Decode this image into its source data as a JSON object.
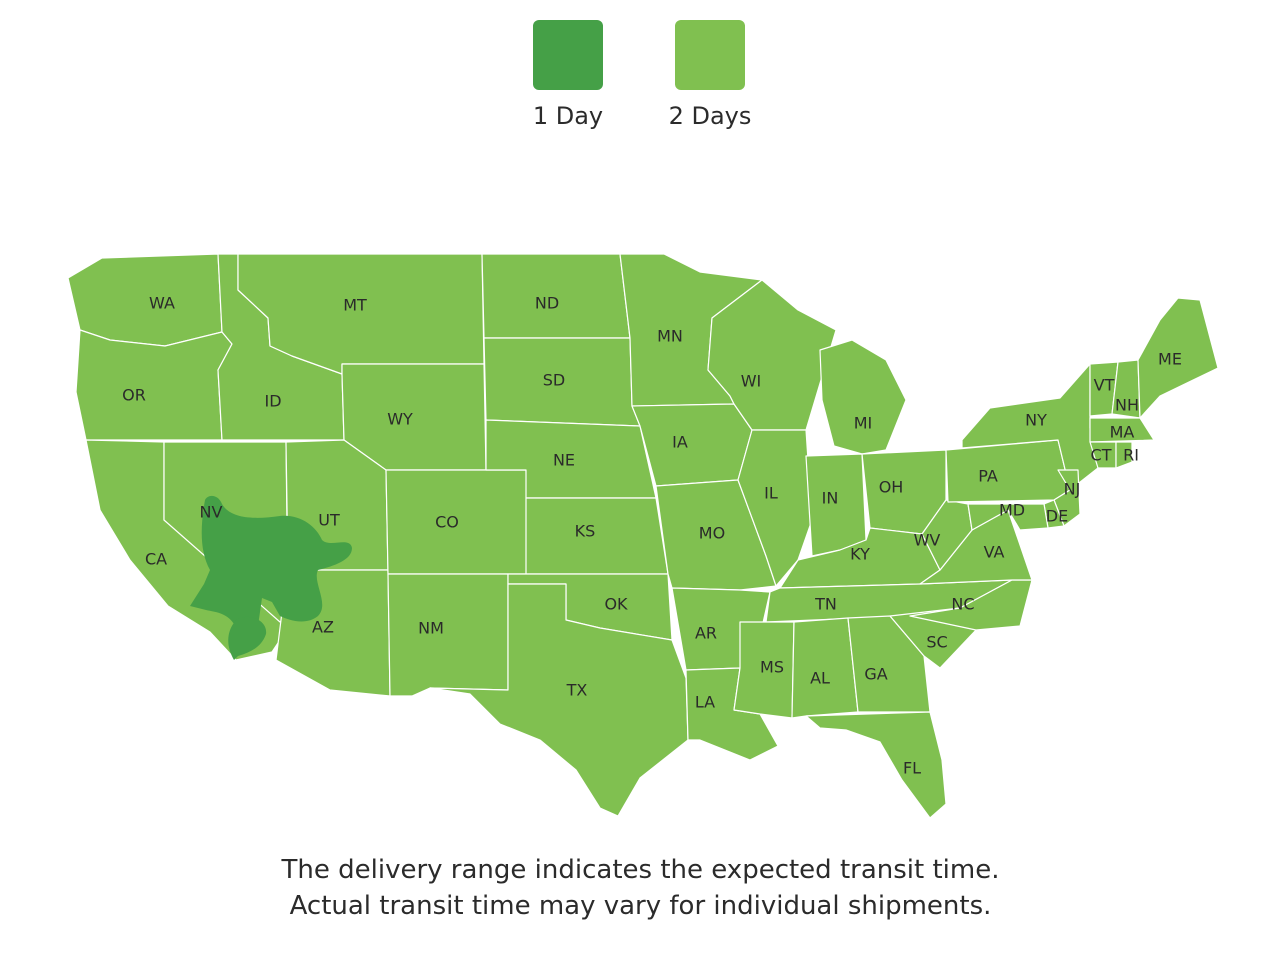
{
  "legend": [
    {
      "label": "1 Day",
      "color": "#45a047"
    },
    {
      "label": "2 Days",
      "color": "#80c050"
    }
  ],
  "map": {
    "base_color": "#80c050",
    "zone_color": "#45a047",
    "border_color": "#ffffff",
    "states": [
      {
        "code": "WA",
        "zone": "2 Days"
      },
      {
        "code": "OR",
        "zone": "2 Days"
      },
      {
        "code": "CA",
        "zone": "2 Days"
      },
      {
        "code": "ID",
        "zone": "2 Days"
      },
      {
        "code": "NV",
        "zone": "2 Days"
      },
      {
        "code": "MT",
        "zone": "2 Days"
      },
      {
        "code": "WY",
        "zone": "2 Days"
      },
      {
        "code": "UT",
        "zone": "2 Days"
      },
      {
        "code": "AZ",
        "zone": "2 Days"
      },
      {
        "code": "CO",
        "zone": "2 Days"
      },
      {
        "code": "NM",
        "zone": "2 Days"
      },
      {
        "code": "ND",
        "zone": "2 Days"
      },
      {
        "code": "SD",
        "zone": "2 Days"
      },
      {
        "code": "NE",
        "zone": "2 Days"
      },
      {
        "code": "KS",
        "zone": "2 Days"
      },
      {
        "code": "OK",
        "zone": "2 Days"
      },
      {
        "code": "TX",
        "zone": "2 Days"
      },
      {
        "code": "MN",
        "zone": "2 Days"
      },
      {
        "code": "IA",
        "zone": "2 Days"
      },
      {
        "code": "MO",
        "zone": "2 Days"
      },
      {
        "code": "AR",
        "zone": "2 Days"
      },
      {
        "code": "LA",
        "zone": "2 Days"
      },
      {
        "code": "WI",
        "zone": "2 Days"
      },
      {
        "code": "IL",
        "zone": "2 Days"
      },
      {
        "code": "MI",
        "zone": "2 Days"
      },
      {
        "code": "IN",
        "zone": "2 Days"
      },
      {
        "code": "OH",
        "zone": "2 Days"
      },
      {
        "code": "KY",
        "zone": "2 Days"
      },
      {
        "code": "TN",
        "zone": "2 Days"
      },
      {
        "code": "MS",
        "zone": "2 Days"
      },
      {
        "code": "AL",
        "zone": "2 Days"
      },
      {
        "code": "GA",
        "zone": "2 Days"
      },
      {
        "code": "FL",
        "zone": "2 Days"
      },
      {
        "code": "SC",
        "zone": "2 Days"
      },
      {
        "code": "NC",
        "zone": "2 Days"
      },
      {
        "code": "VA",
        "zone": "2 Days"
      },
      {
        "code": "WV",
        "zone": "2 Days"
      },
      {
        "code": "PA",
        "zone": "2 Days"
      },
      {
        "code": "NY",
        "zone": "2 Days"
      },
      {
        "code": "VT",
        "zone": "2 Days"
      },
      {
        "code": "NH",
        "zone": "2 Days"
      },
      {
        "code": "ME",
        "zone": "2 Days"
      },
      {
        "code": "MA",
        "zone": "2 Days"
      },
      {
        "code": "CT",
        "zone": "2 Days"
      },
      {
        "code": "RI",
        "zone": "2 Days"
      },
      {
        "code": "NJ",
        "zone": "2 Days"
      },
      {
        "code": "DE",
        "zone": "2 Days"
      },
      {
        "code": "MD",
        "zone": "2 Days"
      }
    ]
  },
  "note": {
    "line1": "The delivery range indicates the expected transit time.",
    "line2": "Actual transit time may vary for individual shipments."
  }
}
